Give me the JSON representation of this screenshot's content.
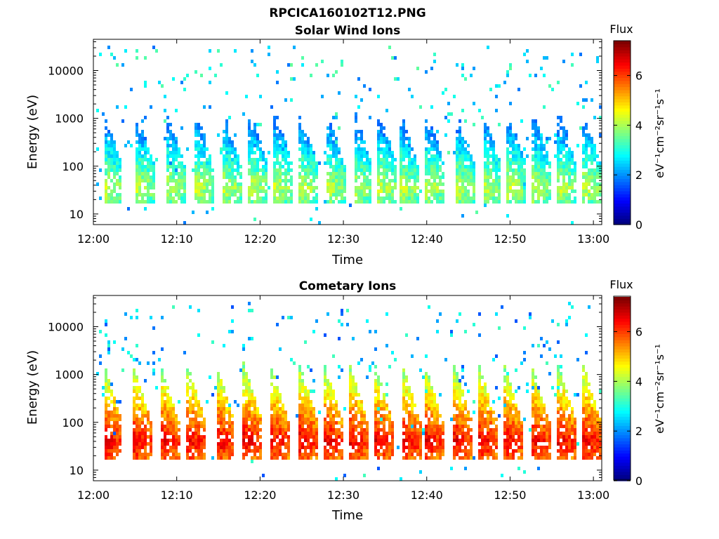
{
  "figure": {
    "title": "RPCICA160102T12.PNG"
  },
  "colorbar": {
    "label": "Flux",
    "units": "eV⁻¹cm⁻²sr⁻¹s⁻¹",
    "range": [
      0,
      7.4
    ],
    "ticks": [
      "0",
      "2",
      "4",
      "6"
    ],
    "tick_values": [
      0,
      2,
      4,
      6
    ],
    "colormap": "jet"
  },
  "chart_data": [
    {
      "type": "heatmap",
      "title": "Solar Wind Ions",
      "xlabel": "Time",
      "ylabel": "Energy (eV)",
      "xlim": [
        "12:00",
        "13:01"
      ],
      "ylim": [
        6,
        45000
      ],
      "yscale": "log",
      "x_ticks": [
        "12:00",
        "12:10",
        "12:20",
        "12:30",
        "12:40",
        "12:50",
        "13:00"
      ],
      "y_ticks": [
        "10",
        "100",
        "1000",
        "10000"
      ],
      "y_tick_values": [
        10,
        100,
        1000,
        10000
      ],
      "band_start_minutes": [
        1.5,
        5.4,
        9.0,
        12.5,
        15.8,
        19.0,
        22.0,
        25.0,
        28.2,
        31.5,
        34.5,
        37.0,
        40.2,
        43.8,
        47.0,
        50.0,
        53.0,
        56.0,
        59.0
      ],
      "band_core_energy_eV": 35,
      "band_peak_flux": 4.2,
      "background_flux": 2.6
    },
    {
      "type": "heatmap",
      "title": "Cometary Ions",
      "xlabel": "Time",
      "ylabel": "Energy (eV)",
      "xlim": [
        "12:00",
        "13:01"
      ],
      "ylim": [
        6,
        45000
      ],
      "yscale": "log",
      "x_ticks": [
        "12:00",
        "12:10",
        "12:20",
        "12:30",
        "12:40",
        "12:50",
        "13:00"
      ],
      "y_ticks": [
        "10",
        "100",
        "1000",
        "10000"
      ],
      "y_tick_values": [
        10,
        100,
        1000,
        10000
      ],
      "band_start_minutes": [
        1.5,
        5.0,
        8.3,
        11.5,
        15.0,
        18.3,
        21.5,
        25.0,
        28.0,
        31.0,
        34.0,
        37.3,
        40.0,
        43.5,
        46.5,
        49.5,
        52.8,
        56.0,
        59.0
      ],
      "band_core_energy_eV": 40,
      "band_peak_flux": 6.6,
      "background_flux": 2.4
    }
  ]
}
